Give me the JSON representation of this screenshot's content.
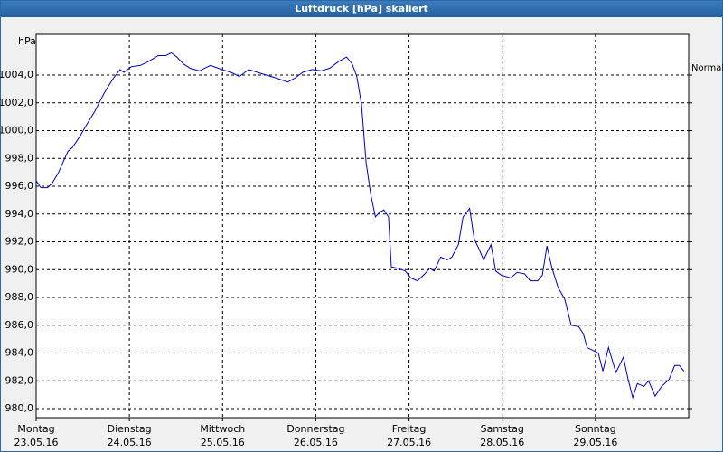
{
  "chart_data": {
    "type": "line",
    "title": "Luftdruck [hPa] skaliert",
    "y_label": "hPa",
    "series": [
      {
        "name": "Normal",
        "color": "#0000c0",
        "x": [
          0,
          0.05,
          0.12,
          0.17,
          0.24,
          0.34,
          0.39,
          0.47,
          0.53,
          0.63,
          0.73,
          0.82,
          0.9,
          0.94,
          1.02,
          1.12,
          1.21,
          1.31,
          1.39,
          1.45,
          1.51,
          1.58,
          1.65,
          1.75,
          1.87,
          1.99,
          2.09,
          2.18,
          2.28,
          2.42,
          2.57,
          2.7,
          2.78,
          2.86,
          2.96,
          3.06,
          3.15,
          3.25,
          3.33,
          3.39,
          3.44,
          3.49,
          3.54,
          3.59,
          3.64,
          3.68,
          3.73,
          3.78,
          3.81,
          3.88,
          3.96,
          4.02,
          4.09,
          4.17,
          4.22,
          4.27,
          4.34,
          4.41,
          4.46,
          4.53,
          4.58,
          4.65,
          4.7,
          4.75,
          4.8,
          4.88,
          4.93,
          4.99,
          5.09,
          5.16,
          5.24,
          5.3,
          5.38,
          5.43,
          5.48,
          5.53,
          5.6,
          5.67,
          5.74,
          5.82,
          5.87,
          5.91,
          5.97,
          6.03,
          6.08,
          6.14,
          6.22,
          6.3,
          6.35,
          6.4,
          6.45,
          6.52,
          6.57,
          6.64,
          6.71,
          6.79,
          6.85,
          6.9,
          6.95
        ],
        "values": [
          996.4,
          995.9,
          995.9,
          996.2,
          997.0,
          998.5,
          998.8,
          999.6,
          1000.3,
          1001.4,
          1002.7,
          1003.7,
          1004.4,
          1004.2,
          1004.6,
          1004.7,
          1005.0,
          1005.4,
          1005.4,
          1005.6,
          1005.3,
          1004.8,
          1004.5,
          1004.3,
          1004.7,
          1004.4,
          1004.2,
          1003.9,
          1004.4,
          1004.1,
          1003.8,
          1003.5,
          1003.8,
          1004.2,
          1004.4,
          1004.3,
          1004.5,
          1005.0,
          1005.3,
          1004.8,
          1003.9,
          1001.9,
          997.7,
          995.4,
          993.8,
          994.1,
          994.3,
          993.8,
          990.2,
          990.1,
          989.9,
          989.4,
          989.2,
          989.7,
          990.1,
          989.9,
          990.9,
          990.7,
          990.9,
          991.8,
          993.8,
          994.4,
          992.2,
          991.5,
          990.7,
          991.8,
          989.9,
          989.6,
          989.4,
          989.8,
          989.7,
          989.2,
          989.2,
          989.6,
          991.7,
          990.2,
          988.7,
          987.9,
          986.0,
          985.9,
          985.4,
          984.4,
          984.2,
          984.0,
          982.7,
          984.4,
          982.6,
          983.7,
          982.1,
          980.8,
          981.8,
          981.6,
          982.0,
          980.9,
          981.6,
          982.1,
          983.1,
          983.1,
          982.7
        ]
      }
    ],
    "xlim": [
      0,
      7
    ],
    "xticks": [
      {
        "value": 0,
        "label": [
          "Montag",
          "23.05.16"
        ]
      },
      {
        "value": 1,
        "label": [
          "Dienstag",
          "24.05.16"
        ]
      },
      {
        "value": 2,
        "label": [
          "Mittwoch",
          "25.05.16"
        ]
      },
      {
        "value": 3,
        "label": [
          "Donnerstag",
          "26.05.16"
        ]
      },
      {
        "value": 4,
        "label": [
          "Freitag",
          "27.05.16"
        ]
      },
      {
        "value": 5,
        "label": [
          "Samstag",
          "28.05.16"
        ]
      },
      {
        "value": 6,
        "label": [
          "Sonntag",
          "29.05.16"
        ]
      }
    ],
    "ylim": [
      979.35,
      1006.93
    ],
    "yticks": [
      {
        "value": 980,
        "label": "980,0"
      },
      {
        "value": 982,
        "label": "982,0"
      },
      {
        "value": 984,
        "label": "984,0"
      },
      {
        "value": 986,
        "label": "986,0"
      },
      {
        "value": 988,
        "label": "988,0"
      },
      {
        "value": 990,
        "label": "990,0"
      },
      {
        "value": 992,
        "label": "992,0"
      },
      {
        "value": 994,
        "label": "994,0"
      },
      {
        "value": 996,
        "label": "996,0"
      },
      {
        "value": 998,
        "label": "998,0"
      },
      {
        "value": 1000,
        "label": "1000,0"
      },
      {
        "value": 1002,
        "label": "1002,0"
      },
      {
        "value": 1004,
        "label": "1004,0"
      }
    ],
    "grid": true
  }
}
